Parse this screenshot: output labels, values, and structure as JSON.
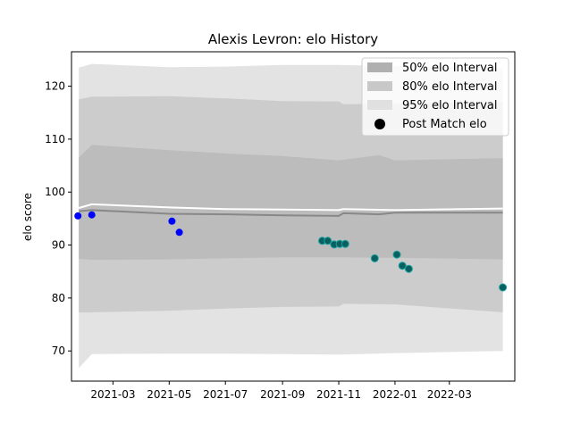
{
  "chart_data": {
    "type": "line",
    "title": "Alexis Levron: elo History",
    "xlabel": "",
    "ylabel": "elo score",
    "xlim": [
      "2021-01-15",
      "2022-05-11"
    ],
    "ylim": [
      64.3,
      126.5
    ],
    "x_ticks": [
      "2021-03-01",
      "2021-05-01",
      "2021-07-01",
      "2021-09-01",
      "2021-11-01",
      "2022-01-01",
      "2022-03-01"
    ],
    "x_tick_labels": [
      "2021-03",
      "2021-05",
      "2021-07",
      "2021-09",
      "2021-11",
      "2022-01",
      "2022-03"
    ],
    "y_ticks": [
      70,
      80,
      90,
      100,
      110,
      120
    ],
    "y_tick_labels": [
      "70",
      "80",
      "90",
      "100",
      "110",
      "120"
    ],
    "grid": false,
    "legend_position": "top-right",
    "legend": [
      {
        "label": "50% elo Interval",
        "kind": "patch",
        "color": "#b0b0b0"
      },
      {
        "label": "80% elo Interval",
        "kind": "patch",
        "color": "#c8c8c8"
      },
      {
        "label": "95% elo Interval",
        "kind": "patch",
        "color": "#e0e0e0"
      },
      {
        "label": "Post Match elo",
        "kind": "marker",
        "color": "#000000"
      }
    ],
    "bands": [
      {
        "name": "95% elo Interval",
        "color": "#e3e3e3",
        "x": [
          "2021-01-23",
          "2021-02-06",
          "2021-05-01",
          "2021-07-01",
          "2021-09-01",
          "2021-11-01",
          "2022-01-01",
          "2022-04-28"
        ],
        "upper": [
          123.5,
          124.2,
          123.6,
          123.7,
          124.0,
          124.0,
          123.8,
          123.5
        ],
        "lower": [
          66.8,
          69.4,
          69.5,
          69.5,
          69.4,
          69.3,
          69.6,
          70.0
        ]
      },
      {
        "name": "80% elo Interval",
        "color": "#cccccc",
        "x": [
          "2021-01-23",
          "2021-02-06",
          "2021-05-01",
          "2021-07-01",
          "2021-09-01",
          "2021-11-01",
          "2021-11-06",
          "2022-01-01",
          "2022-04-28"
        ],
        "upper": [
          117.5,
          118.0,
          118.1,
          117.7,
          117.2,
          117.1,
          116.6,
          116.7,
          117.0
        ],
        "lower": [
          77.3,
          77.3,
          77.6,
          78.0,
          78.3,
          78.4,
          78.9,
          78.8,
          77.3
        ]
      },
      {
        "name": "50% elo Interval",
        "color": "#bcbcbc",
        "x": [
          "2021-01-23",
          "2021-02-06",
          "2021-05-01",
          "2021-07-01",
          "2021-09-01",
          "2021-11-01",
          "2021-11-06",
          "2021-12-15",
          "2022-01-01",
          "2022-04-28"
        ],
        "upper": [
          106.5,
          108.9,
          107.9,
          107.3,
          106.8,
          106.0,
          106.1,
          107.0,
          106.0,
          106.4
        ],
        "lower": [
          87.4,
          87.2,
          87.3,
          87.5,
          87.7,
          87.7,
          87.7,
          87.6,
          87.6,
          87.3
        ]
      }
    ],
    "series": [
      {
        "name": "",
        "style": "line",
        "color": "#ffffff",
        "x": [
          "2021-01-23",
          "2021-02-06",
          "2021-05-01",
          "2021-07-01",
          "2021-09-01",
          "2021-11-01",
          "2021-11-06",
          "2022-01-01",
          "2022-04-28"
        ],
        "y": [
          97.0,
          97.7,
          97.1,
          96.8,
          96.7,
          96.6,
          96.8,
          96.6,
          96.9
        ]
      },
      {
        "name": "",
        "style": "line",
        "color": "#888888",
        "x": [
          "2021-01-23",
          "2021-02-06",
          "2021-05-01",
          "2021-07-01",
          "2021-09-01",
          "2021-11-01",
          "2021-11-06",
          "2021-12-15",
          "2022-01-01",
          "2022-04-28"
        ],
        "y": [
          96.4,
          96.6,
          95.9,
          95.8,
          95.6,
          95.5,
          96.0,
          95.8,
          96.1,
          96.1
        ]
      },
      {
        "name": "Post Match elo",
        "style": "scatter",
        "color": "#0000ff",
        "x": [
          "2021-01-22",
          "2021-02-06",
          "2021-05-04",
          "2021-05-12"
        ],
        "y": [
          95.5,
          95.7,
          94.5,
          92.4
        ]
      },
      {
        "name": "Post Match elo",
        "style": "scatter",
        "color": "#0a5f5f",
        "x": [
          "2021-10-14",
          "2021-10-20",
          "2021-10-27",
          "2021-11-02",
          "2021-11-08",
          "2021-12-10",
          "2022-01-03",
          "2022-01-09",
          "2022-01-16",
          "2022-04-28"
        ],
        "y": [
          90.8,
          90.8,
          90.1,
          90.2,
          90.2,
          87.5,
          88.2,
          86.1,
          85.5,
          82.0
        ]
      }
    ]
  }
}
